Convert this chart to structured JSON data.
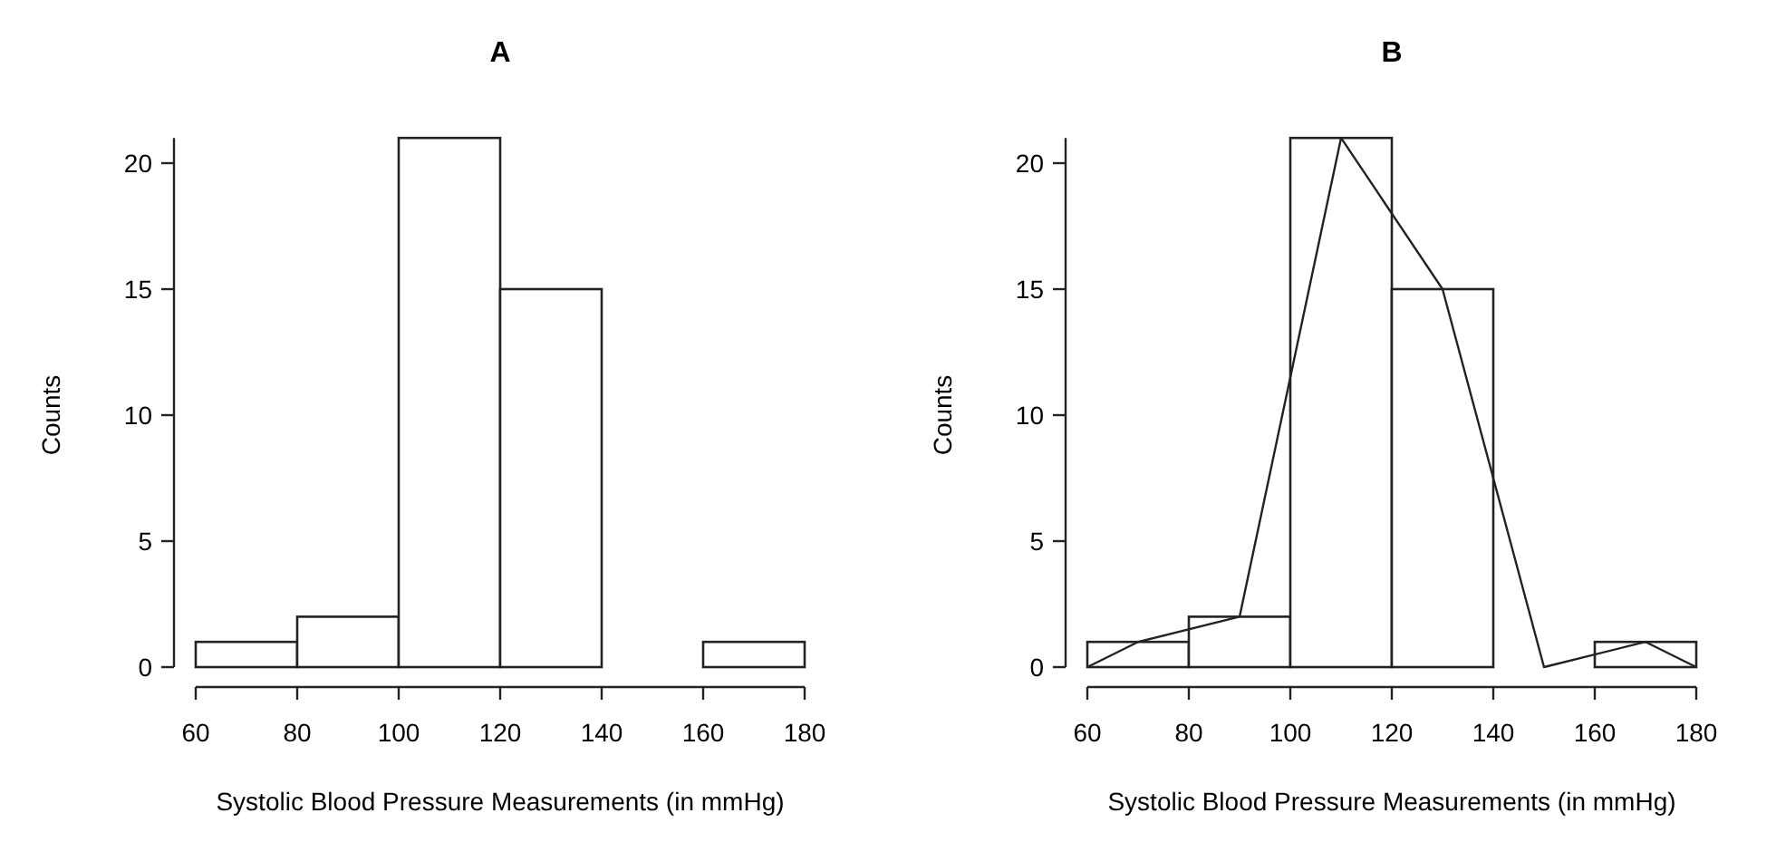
{
  "chart_data": [
    {
      "type": "histogram",
      "title": "A",
      "xlabel": "Systolic Blood Pressure Measurements (in mmHg)",
      "ylabel": "Counts",
      "bins": [
        60,
        80,
        100,
        120,
        140,
        160,
        180
      ],
      "values": [
        1,
        2,
        21,
        15,
        0,
        1
      ],
      "xlim": [
        60,
        180
      ],
      "xticks": [
        60,
        80,
        100,
        120,
        140,
        160,
        180
      ],
      "ylim": [
        0,
        21
      ],
      "yticks": [
        0,
        5,
        10,
        15,
        20
      ]
    },
    {
      "type": "histogram",
      "title": "B",
      "xlabel": "Systolic Blood Pressure Measurements (in mmHg)",
      "ylabel": "Counts",
      "bins": [
        60,
        80,
        100,
        120,
        140,
        160,
        180
      ],
      "xlim": [
        60,
        180
      ],
      "xticks": [
        60,
        80,
        100,
        120,
        140,
        160,
        180
      ],
      "ylim": [
        0,
        21
      ],
      "yticks": [
        0,
        5,
        10,
        15,
        20
      ],
      "series": [
        {
          "type": "histogram",
          "values": [
            1,
            2,
            21,
            15,
            0,
            1
          ]
        },
        {
          "type": "line",
          "x": [
            60,
            70,
            90,
            110,
            130,
            150,
            170,
            180
          ],
          "values": [
            0,
            1,
            2,
            21,
            15,
            0,
            1,
            0
          ]
        }
      ]
    }
  ]
}
